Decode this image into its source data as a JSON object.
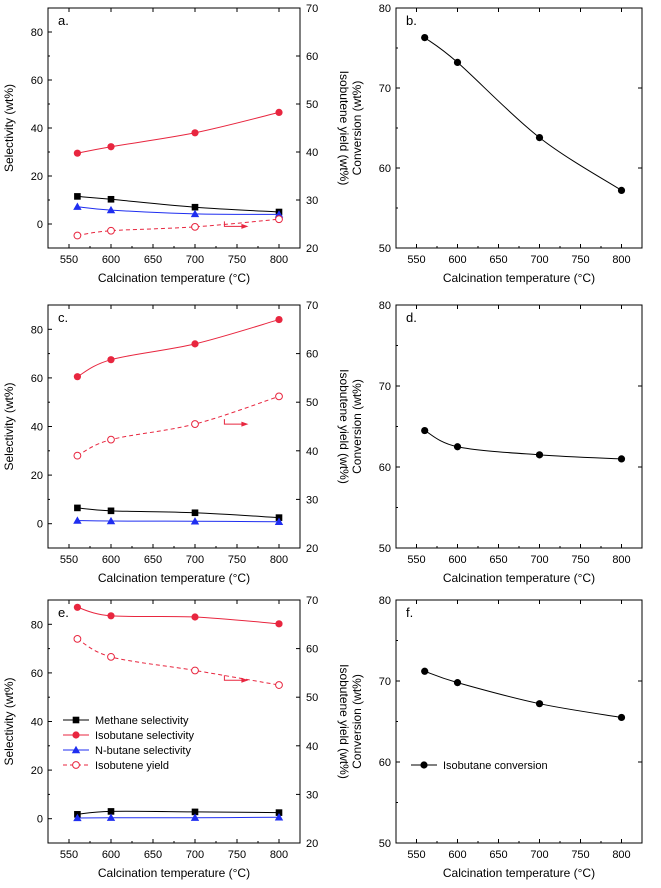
{
  "chart_data": [
    {
      "panel_label": "a.",
      "type": "line",
      "categories": [
        560,
        600,
        700,
        800
      ],
      "xlabel": "Calcination temperature (°C)",
      "xlim": [
        525,
        825
      ],
      "x_ticks": [
        550,
        600,
        650,
        700,
        750,
        800
      ],
      "ylabel": "Selectivity (wt%)",
      "ylim": [
        -10,
        90
      ],
      "y_ticks": [
        0,
        20,
        40,
        60,
        80
      ],
      "y2label": "Isobutene yield (wt%)",
      "y2lim": [
        20,
        70
      ],
      "y2_ticks": [
        20,
        30,
        40,
        50,
        60,
        70
      ],
      "series": [
        {
          "name": "Methane selectivity",
          "axis": "left",
          "color": "#000000",
          "marker": "square",
          "dash": false,
          "values": [
            11.5,
            10.3,
            7.0,
            5.0
          ]
        },
        {
          "name": "Isobutane selectivity",
          "axis": "left",
          "color": "#e8263f",
          "marker": "circle",
          "dash": false,
          "values": [
            29.5,
            32.2,
            38.0,
            46.5
          ]
        },
        {
          "name": "N-butane selectivity",
          "axis": "left",
          "color": "#1f2ef0",
          "marker": "triangle",
          "dash": false,
          "values": [
            7.2,
            5.8,
            4.2,
            4.0
          ]
        },
        {
          "name": "Isobutene yield",
          "axis": "right",
          "color": "#e8263f",
          "marker": "open-circle",
          "dash": true,
          "values": [
            22.6,
            23.6,
            24.4,
            26.0
          ]
        }
      ],
      "arrow_to": "right axis"
    },
    {
      "panel_label": "b.",
      "type": "line",
      "categories": [
        560,
        600,
        700,
        800
      ],
      "xlabel": "Calcination temperature (°C)",
      "xlim": [
        525,
        825
      ],
      "x_ticks": [
        550,
        600,
        650,
        700,
        750,
        800
      ],
      "ylabel": "Conversion (wt%)",
      "ylim": [
        50,
        80
      ],
      "y_ticks": [
        50,
        60,
        70,
        80
      ],
      "series": [
        {
          "name": "Isobutane conversion",
          "axis": "left",
          "color": "#000000",
          "marker": "circle",
          "dash": false,
          "values": [
            76.3,
            73.2,
            63.8,
            57.2
          ]
        }
      ]
    },
    {
      "panel_label": "c.",
      "type": "line",
      "categories": [
        560,
        600,
        700,
        800
      ],
      "xlabel": "Calcination temperature (°C)",
      "xlim": [
        525,
        825
      ],
      "x_ticks": [
        550,
        600,
        650,
        700,
        750,
        800
      ],
      "ylabel": "Selectivity (wt%)",
      "ylim": [
        -10,
        90
      ],
      "y_ticks": [
        0,
        20,
        40,
        60,
        80
      ],
      "y2label": "Isobutene yield (wt%)",
      "y2lim": [
        20,
        70
      ],
      "y2_ticks": [
        20,
        30,
        40,
        50,
        60,
        70
      ],
      "series": [
        {
          "name": "Methane selectivity",
          "axis": "left",
          "color": "#000000",
          "marker": "square",
          "dash": false,
          "values": [
            6.5,
            5.3,
            4.5,
            2.5
          ]
        },
        {
          "name": "Isobutane selectivity",
          "axis": "left",
          "color": "#e8263f",
          "marker": "circle",
          "dash": false,
          "values": [
            60.5,
            67.5,
            74.0,
            84.0
          ]
        },
        {
          "name": "N-butane selectivity",
          "axis": "left",
          "color": "#1f2ef0",
          "marker": "triangle",
          "dash": false,
          "values": [
            1.3,
            1.1,
            1.0,
            0.8
          ]
        },
        {
          "name": "Isobutene yield",
          "axis": "right",
          "color": "#e8263f",
          "marker": "open-circle",
          "dash": true,
          "values": [
            39.0,
            42.3,
            45.5,
            51.2
          ]
        }
      ],
      "arrow_to": "right axis"
    },
    {
      "panel_label": "d.",
      "type": "line",
      "categories": [
        560,
        600,
        700,
        800
      ],
      "xlabel": "Calcination temperature (°C)",
      "xlim": [
        525,
        825
      ],
      "x_ticks": [
        550,
        600,
        650,
        700,
        750,
        800
      ],
      "ylabel": "Conversion (wt%)",
      "ylim": [
        50,
        80
      ],
      "y_ticks": [
        50,
        60,
        70,
        80
      ],
      "series": [
        {
          "name": "Isobutane conversion",
          "axis": "left",
          "color": "#000000",
          "marker": "circle",
          "dash": false,
          "values": [
            64.5,
            62.5,
            61.5,
            61.0
          ]
        }
      ]
    },
    {
      "panel_label": "e.",
      "type": "line",
      "categories": [
        560,
        600,
        700,
        800
      ],
      "xlabel": "Calcination temperature (°C)",
      "xlim": [
        525,
        825
      ],
      "x_ticks": [
        550,
        600,
        650,
        700,
        750,
        800
      ],
      "ylabel": "Selectivity (wt%)",
      "ylim": [
        -10,
        90
      ],
      "y_ticks": [
        0,
        20,
        40,
        60,
        80
      ],
      "y2label": "Isobutene yield (wt%)",
      "y2lim": [
        20,
        70
      ],
      "y2_ticks": [
        20,
        30,
        40,
        50,
        60,
        70
      ],
      "series": [
        {
          "name": "Methane selectivity",
          "axis": "left",
          "color": "#000000",
          "marker": "square",
          "dash": false,
          "values": [
            1.8,
            3.0,
            2.8,
            2.5
          ]
        },
        {
          "name": "Isobutane selectivity",
          "axis": "left",
          "color": "#e8263f",
          "marker": "circle",
          "dash": false,
          "values": [
            87.0,
            83.5,
            83.0,
            80.2
          ]
        },
        {
          "name": "N-butane selectivity",
          "axis": "left",
          "color": "#1f2ef0",
          "marker": "triangle",
          "dash": false,
          "values": [
            0.3,
            0.4,
            0.4,
            0.6
          ]
        },
        {
          "name": "Isobutene yield",
          "axis": "right",
          "color": "#e8263f",
          "marker": "open-circle",
          "dash": true,
          "values": [
            62.0,
            58.3,
            55.5,
            52.5
          ]
        }
      ],
      "arrow_to": "right axis",
      "legend": {
        "position": "center-left",
        "entries": [
          "Methane selectivity",
          "Isobutane selectivity",
          "N-butane selectivity",
          "Isobutene yield"
        ]
      }
    },
    {
      "panel_label": "f.",
      "type": "line",
      "categories": [
        560,
        600,
        700,
        800
      ],
      "xlabel": "Calcination temperature (°C)",
      "xlim": [
        525,
        825
      ],
      "x_ticks": [
        550,
        600,
        650,
        700,
        750,
        800
      ],
      "ylabel": "Conversion (wt%)",
      "ylim": [
        50,
        80
      ],
      "y_ticks": [
        50,
        60,
        70,
        80
      ],
      "series": [
        {
          "name": "Isobutane conversion",
          "axis": "left",
          "color": "#000000",
          "marker": "circle",
          "dash": false,
          "values": [
            71.2,
            69.8,
            67.2,
            65.5
          ]
        }
      ],
      "legend": {
        "position": "center-left",
        "entries": [
          "Isobutane conversion"
        ]
      }
    }
  ]
}
